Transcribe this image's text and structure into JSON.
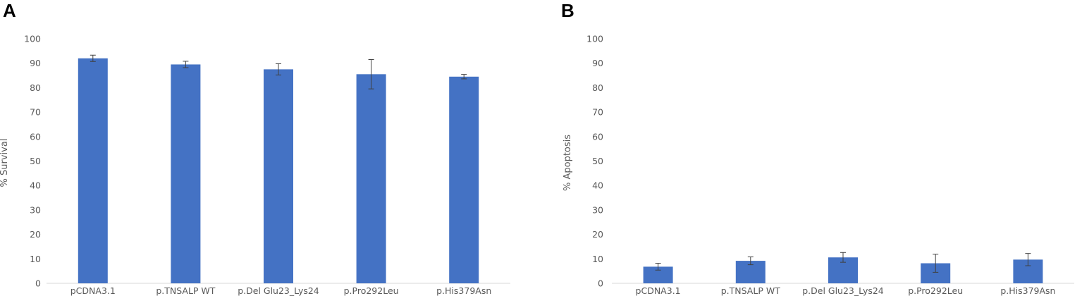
{
  "chart_data": [
    {
      "type": "bar",
      "panel_label": "A",
      "categories": [
        "pCDNA3.1",
        "p.TNSALP WT",
        "p.Del Glu23_Lys24",
        "p.Pro292Leu",
        "p.His379Asn"
      ],
      "values": [
        92,
        89.5,
        87.5,
        85.5,
        84.5
      ],
      "error": [
        1.3,
        1.3,
        2.3,
        6.0,
        0.9
      ],
      "ylabel": "% Survival",
      "xlabel": "",
      "ylim": [
        0,
        100
      ],
      "yticks": [
        "0",
        "10",
        "20",
        "30",
        "40",
        "50",
        "60",
        "70",
        "80",
        "90",
        "100"
      ],
      "grid": false,
      "bar_color": "#4472C4"
    },
    {
      "type": "bar",
      "panel_label": "B",
      "categories": [
        "pCDNA3.1",
        "p.TNSALP WT",
        "p.Del Glu23_Lys24",
        "p.Pro292Leu",
        "p.His379Asn"
      ],
      "values": [
        6.8,
        9.2,
        10.6,
        8.2,
        9.7
      ],
      "error": [
        1.4,
        1.6,
        2.0,
        3.7,
        2.5
      ],
      "ylabel": "% Apoptosis",
      "xlabel": "",
      "ylim": [
        0,
        100
      ],
      "yticks": [
        "0",
        "10",
        "20",
        "30",
        "40",
        "50",
        "60",
        "70",
        "80",
        "90",
        "100"
      ],
      "grid": false,
      "bar_color": "#4472C4"
    }
  ]
}
